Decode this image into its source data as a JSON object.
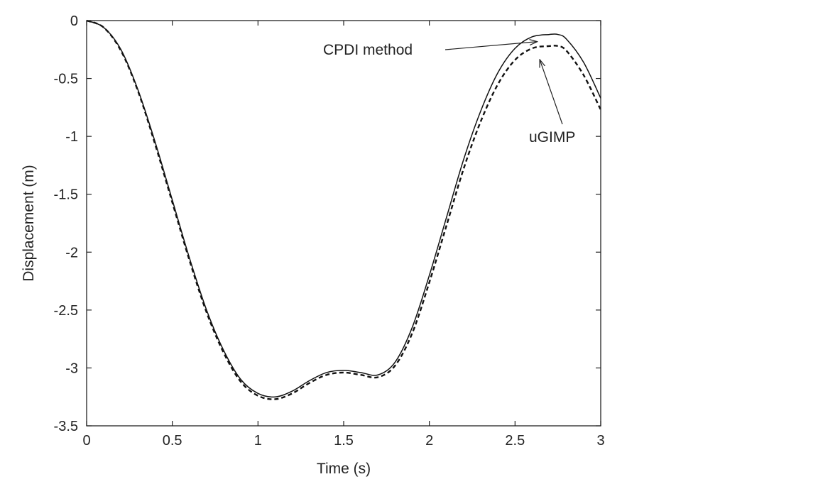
{
  "chart_data": {
    "type": "line",
    "title": "",
    "xlabel": "Time (s)",
    "ylabel": "Displacement (m)",
    "xlim": [
      0,
      3
    ],
    "ylim": [
      -3.5,
      0
    ],
    "xticks": [
      0,
      0.5,
      1,
      1.5,
      2,
      2.5,
      3
    ],
    "xtick_labels": [
      "0",
      "0.5",
      "1",
      "1.5",
      "2",
      "2.5",
      "3"
    ],
    "yticks": [
      0,
      -0.5,
      -1,
      -1.5,
      -2,
      -2.5,
      -3,
      -3.5
    ],
    "ytick_labels": [
      "0",
      "-0.5",
      "-1",
      "-1.5",
      "-2",
      "-2.5",
      "-3",
      "-3.5"
    ],
    "grid": false,
    "legend": "none",
    "series": [
      {
        "name": "CPDI method",
        "style": "solid",
        "color": "#111111",
        "x": [
          0,
          0.1,
          0.2,
          0.3,
          0.4,
          0.5,
          0.6,
          0.7,
          0.8,
          0.9,
          1.0,
          1.1,
          1.2,
          1.3,
          1.4,
          1.5,
          1.6,
          1.7,
          1.8,
          1.9,
          2.0,
          2.1,
          2.2,
          2.3,
          2.4,
          2.5,
          2.6,
          2.7,
          2.75,
          2.8,
          2.9,
          3.0
        ],
        "y": [
          0,
          -0.06,
          -0.25,
          -0.6,
          -1.05,
          -1.55,
          -2.05,
          -2.5,
          -2.85,
          -3.1,
          -3.22,
          -3.25,
          -3.2,
          -3.11,
          -3.04,
          -3.02,
          -3.04,
          -3.06,
          -2.95,
          -2.65,
          -2.2,
          -1.7,
          -1.2,
          -0.78,
          -0.45,
          -0.24,
          -0.14,
          -0.12,
          -0.12,
          -0.16,
          -0.36,
          -0.67
        ]
      },
      {
        "name": "uGIMP",
        "style": "dashed",
        "color": "#111111",
        "x": [
          0,
          0.1,
          0.2,
          0.3,
          0.4,
          0.5,
          0.6,
          0.7,
          0.8,
          0.9,
          1.0,
          1.1,
          1.2,
          1.3,
          1.4,
          1.5,
          1.6,
          1.7,
          1.8,
          1.9,
          2.0,
          2.1,
          2.2,
          2.3,
          2.4,
          2.5,
          2.6,
          2.7,
          2.75,
          2.8,
          2.9,
          3.0
        ],
        "y": [
          0,
          -0.06,
          -0.26,
          -0.61,
          -1.07,
          -1.57,
          -2.07,
          -2.52,
          -2.87,
          -3.12,
          -3.24,
          -3.27,
          -3.22,
          -3.13,
          -3.06,
          -3.04,
          -3.06,
          -3.08,
          -2.98,
          -2.7,
          -2.26,
          -1.77,
          -1.28,
          -0.87,
          -0.55,
          -0.34,
          -0.24,
          -0.22,
          -0.22,
          -0.26,
          -0.47,
          -0.77
        ]
      }
    ],
    "annotations": [
      {
        "text": "CPDI method",
        "points_to_series": "CPDI method",
        "target_x": 2.63,
        "target_y": -0.2
      },
      {
        "text": "uGIMP",
        "points_to_series": "uGIMP",
        "target_x": 2.64,
        "target_y": -0.3
      }
    ]
  }
}
